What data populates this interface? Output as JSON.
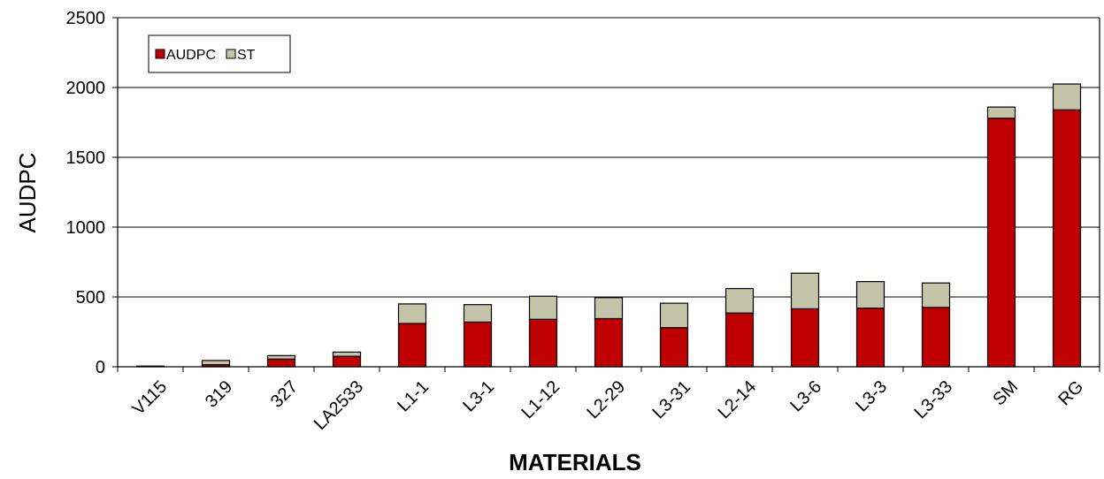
{
  "chart_data": {
    "type": "bar",
    "stacked": true,
    "title": "",
    "xlabel": "MATERIALS",
    "ylabel": "AUDPC",
    "ylim": [
      0,
      2500
    ],
    "yticks": [
      0,
      500,
      1000,
      1500,
      2000,
      2500
    ],
    "grid": true,
    "legend_position": "top-left",
    "categories": [
      "V115",
      "319",
      "327",
      "LA2533",
      "L1-1",
      "L3-1",
      "L1-12",
      "L2-29",
      "L3-31",
      "L2-14",
      "L3-6",
      "L3-3",
      "L3-33",
      "SM",
      "RG"
    ],
    "series": [
      {
        "name": "AUDPC",
        "color": "#c00000",
        "values": [
          0,
          15,
          55,
          75,
          310,
          320,
          340,
          345,
          280,
          385,
          415,
          420,
          425,
          1780,
          1840
        ]
      },
      {
        "name": "ST",
        "color": "#c4c4a8",
        "values": [
          5,
          30,
          25,
          30,
          140,
          125,
          165,
          150,
          175,
          175,
          255,
          190,
          175,
          80,
          185
        ]
      }
    ]
  }
}
